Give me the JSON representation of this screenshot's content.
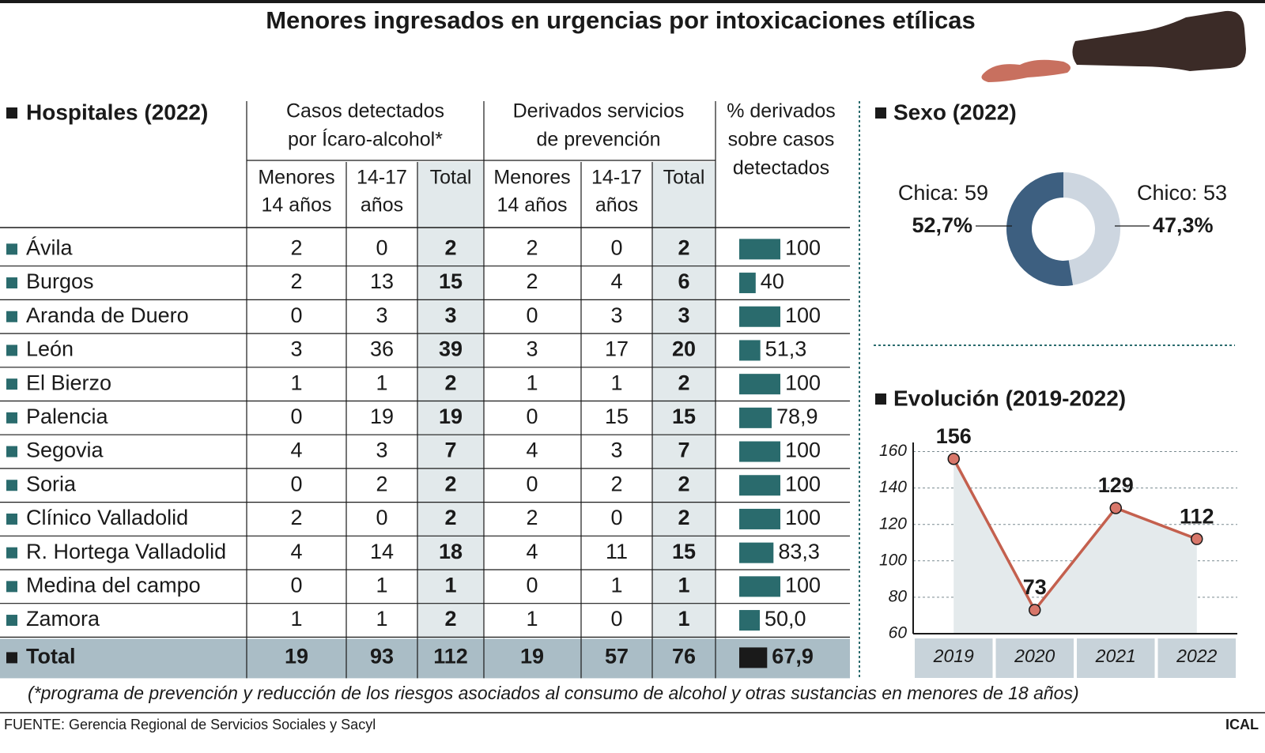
{
  "title": "Menores ingresados en urgencias por intoxicaciones etílicas",
  "table": {
    "heading": "Hospitales (2022)",
    "group_headers": [
      [
        "Casos detectados",
        "por Ícaro-alcohol*"
      ],
      [
        "Derivados servicios",
        "de prevención"
      ],
      [
        "% derivados",
        "sobre casos",
        "detectados"
      ]
    ],
    "sub_headers": [
      [
        "Menores",
        "14 años"
      ],
      [
        "14-17",
        "años"
      ],
      [
        "Total"
      ],
      [
        "Menores",
        "14 años"
      ],
      [
        "14-17",
        "años"
      ],
      [
        "Total"
      ]
    ],
    "rows": [
      {
        "name": "Ávila",
        "cells": [
          2,
          0,
          2,
          2,
          0,
          2
        ],
        "pct": 100,
        "pct_label": "100"
      },
      {
        "name": "Burgos",
        "cells": [
          2,
          13,
          15,
          2,
          4,
          6
        ],
        "pct": 40,
        "pct_label": "40"
      },
      {
        "name": "Aranda de Duero",
        "cells": [
          0,
          3,
          3,
          0,
          3,
          3
        ],
        "pct": 100,
        "pct_label": "100"
      },
      {
        "name": "León",
        "cells": [
          3,
          36,
          39,
          3,
          17,
          20
        ],
        "pct": 51.3,
        "pct_label": "51,3"
      },
      {
        "name": "El Bierzo",
        "cells": [
          1,
          1,
          2,
          1,
          1,
          2
        ],
        "pct": 100,
        "pct_label": "100"
      },
      {
        "name": "Palencia",
        "cells": [
          0,
          19,
          19,
          0,
          15,
          15
        ],
        "pct": 78.9,
        "pct_label": "78,9"
      },
      {
        "name": "Segovia",
        "cells": [
          4,
          3,
          7,
          4,
          3,
          7
        ],
        "pct": 100,
        "pct_label": "100"
      },
      {
        "name": "Soria",
        "cells": [
          0,
          2,
          2,
          0,
          2,
          2
        ],
        "pct": 100,
        "pct_label": "100"
      },
      {
        "name": "Clínico Valladolid",
        "cells": [
          2,
          0,
          2,
          2,
          0,
          2
        ],
        "pct": 100,
        "pct_label": "100"
      },
      {
        "name": "R. Hortega Valladolid",
        "cells": [
          4,
          14,
          18,
          4,
          11,
          15
        ],
        "pct": 83.3,
        "pct_label": "83,3"
      },
      {
        "name": "Medina del campo",
        "cells": [
          0,
          1,
          1,
          0,
          1,
          1
        ],
        "pct": 100,
        "pct_label": "100"
      },
      {
        "name": "Zamora",
        "cells": [
          1,
          1,
          2,
          1,
          0,
          1
        ],
        "pct": 50.0,
        "pct_label": "50,0"
      }
    ],
    "total": {
      "name": "Total",
      "cells": [
        19,
        93,
        112,
        19,
        57,
        76
      ],
      "pct": 67.9,
      "pct_label": "67,9"
    },
    "bar_color": "#2a6b6d",
    "total_bar_color": "#1a1a1a"
  },
  "chart_data": [
    {
      "type": "donut",
      "title": "Sexo (2022)",
      "values": [
        59,
        53
      ],
      "value_labels": [
        "Chica: 59",
        "Chico: 53"
      ],
      "share_labels": [
        "52,7%",
        "47,3%"
      ],
      "colors": [
        "#3d5f80",
        "#cdd6e0"
      ]
    },
    {
      "type": "line",
      "title": "Evolución (2019-2022)",
      "categories": [
        "2019",
        "2020",
        "2021",
        "2022"
      ],
      "values": [
        156,
        73,
        129,
        112
      ],
      "ylim": [
        60,
        165
      ],
      "yticks": [
        60,
        80,
        100,
        120,
        140,
        160
      ],
      "grid": true,
      "color": "#c4604e",
      "area_color": "#e4eaec"
    }
  ],
  "footnote": "(*programa de prevención y reducción de los riesgos asociados al consumo de alcohol y otras sustancias en menores de 18 años)",
  "source": "FUENTE: Gerencia Regional de Servicios Sociales y Sacyl",
  "brand": "ICAL"
}
